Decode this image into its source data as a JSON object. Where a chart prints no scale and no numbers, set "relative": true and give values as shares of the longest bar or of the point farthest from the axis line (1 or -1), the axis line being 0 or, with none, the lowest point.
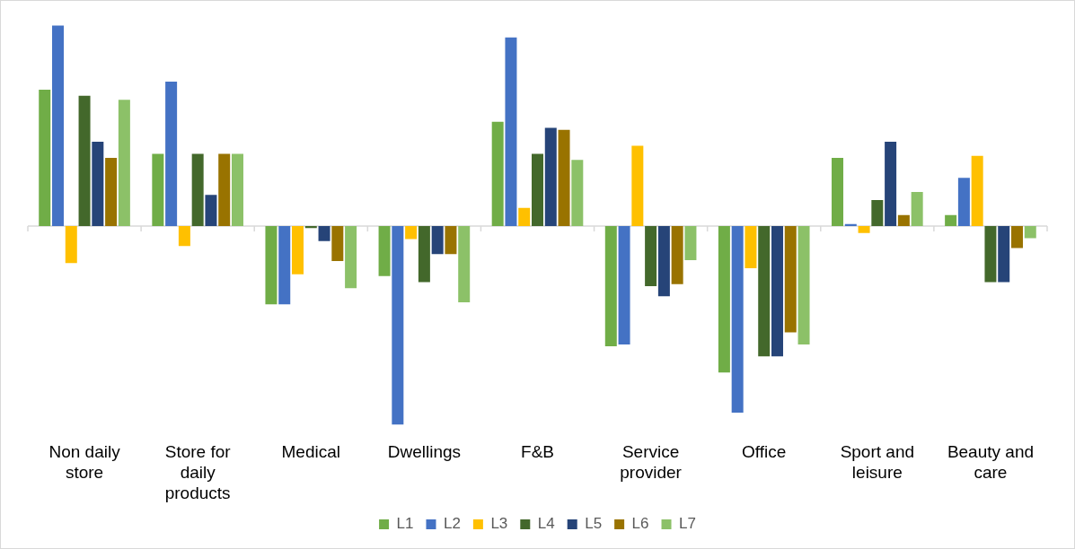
{
  "chart_data": {
    "type": "bar",
    "relative": true,
    "legend": "bottom",
    "categories": [
      "Non daily store",
      "Store for daily products",
      "Medical",
      "Dwellings",
      "F&B",
      "Service provider",
      "Office",
      "Sport and leisure",
      "Beauty and care"
    ],
    "series": [
      {
        "name": "L1",
        "color": "#70ad47",
        "values": [
          0.68,
          0.36,
          -0.39,
          -0.25,
          0.52,
          -0.6,
          -0.73,
          0.34,
          0.055
        ]
      },
      {
        "name": "L2",
        "color": "#4472c4",
        "values": [
          1,
          0.72,
          -0.39,
          -0.99,
          0.94,
          -0.59,
          -0.93,
          0.01,
          0.24
        ]
      },
      {
        "name": "L3",
        "color": "#ffc000",
        "values": [
          -0.185,
          -0.1,
          -0.24,
          -0.065,
          0.09,
          0.4,
          -0.21,
          -0.035,
          0.35
        ]
      },
      {
        "name": "L4",
        "color": "#43682b",
        "values": [
          0.65,
          0.36,
          -0.01,
          -0.28,
          0.36,
          -0.3,
          -0.65,
          0.13,
          -0.28
        ]
      },
      {
        "name": "L5",
        "color": "#264478",
        "values": [
          0.42,
          0.155,
          -0.075,
          -0.14,
          0.49,
          -0.35,
          -0.65,
          0.42,
          -0.28
        ]
      },
      {
        "name": "L6",
        "color": "#997300",
        "values": [
          0.34,
          0.36,
          -0.175,
          -0.14,
          0.48,
          -0.29,
          -0.53,
          0.055,
          -0.11
        ]
      },
      {
        "name": "L7",
        "color": "#8cc168",
        "values": [
          0.63,
          0.36,
          -0.31,
          -0.38,
          0.33,
          -0.17,
          -0.59,
          0.17,
          -0.06
        ]
      }
    ]
  }
}
